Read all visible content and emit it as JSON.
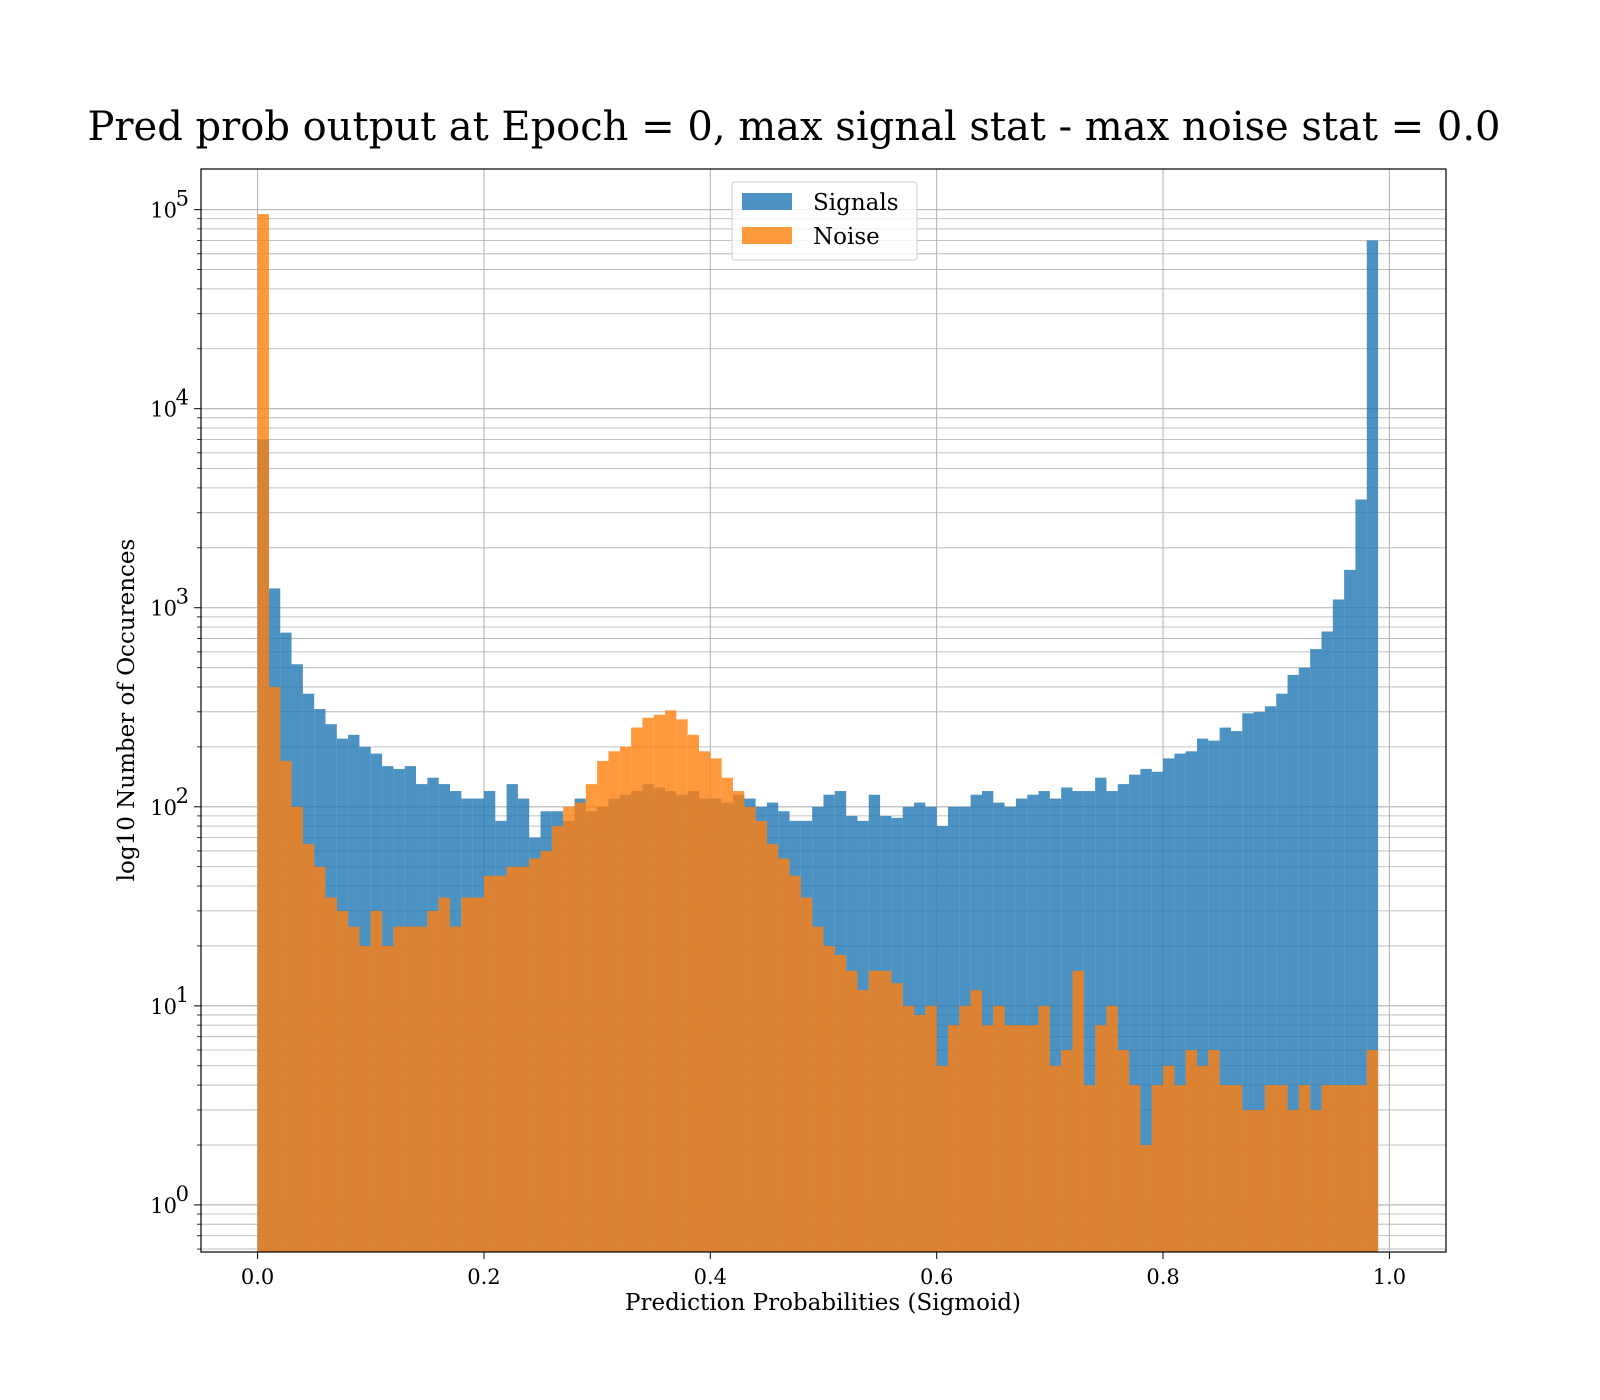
{
  "chart_data": {
    "type": "bar",
    "subtype": "histogram",
    "title": "Pred prob output at Epoch = 0, max signal stat - max noise stat = 0.0",
    "xlabel": "Prediction Probabilities (Sigmoid)",
    "ylabel": "log10 Number of Occurences",
    "xlim": [
      -0.05,
      1.05
    ],
    "ylim": [
      0.58,
      160000
    ],
    "yscale": "log",
    "grid": true,
    "legend_position": "top-center",
    "x_ticks": [
      "0.0",
      "0.2",
      "0.4",
      "0.6",
      "0.8",
      "1.0"
    ],
    "y_ticks": [
      {
        "base": "10",
        "exp": "0"
      },
      {
        "base": "10",
        "exp": "1"
      },
      {
        "base": "10",
        "exp": "2"
      },
      {
        "base": "10",
        "exp": "3"
      },
      {
        "base": "10",
        "exp": "4"
      },
      {
        "base": "10",
        "exp": "5"
      }
    ],
    "bins": {
      "start": 0.0,
      "end": 1.0,
      "count": 100
    },
    "series": [
      {
        "name": "Signals",
        "color": "#1f77b4",
        "opacity": 0.8,
        "values": [
          7000,
          1250,
          750,
          520,
          370,
          310,
          260,
          220,
          230,
          200,
          185,
          160,
          155,
          160,
          130,
          140,
          130,
          120,
          110,
          110,
          120,
          85,
          130,
          110,
          70,
          95,
          95,
          85,
          110,
          95,
          100,
          110,
          115,
          120,
          130,
          125,
          120,
          115,
          120,
          110,
          110,
          105,
          115,
          110,
          100,
          105,
          95,
          85,
          85,
          100,
          115,
          120,
          90,
          85,
          115,
          90,
          88,
          100,
          105,
          100,
          80,
          100,
          100,
          115,
          120,
          105,
          100,
          110,
          115,
          120,
          110,
          125,
          120,
          120,
          140,
          120,
          130,
          145,
          155,
          150,
          175,
          185,
          190,
          220,
          215,
          250,
          240,
          295,
          300,
          320,
          370,
          460,
          500,
          620,
          760,
          1100,
          1550,
          3500,
          70000,
          0
        ]
      },
      {
        "name": "Noise",
        "color": "#ff7f0e",
        "opacity": 0.8,
        "values": [
          95000,
          400,
          170,
          100,
          65,
          50,
          35,
          30,
          25,
          20,
          30,
          20,
          25,
          25,
          25,
          30,
          35,
          25,
          35,
          35,
          45,
          45,
          50,
          50,
          55,
          60,
          80,
          100,
          105,
          130,
          170,
          190,
          200,
          250,
          280,
          290,
          305,
          275,
          230,
          190,
          175,
          140,
          120,
          100,
          85,
          65,
          55,
          45,
          35,
          25,
          20,
          18,
          15,
          12,
          15,
          15,
          13,
          10,
          9,
          10,
          5,
          8,
          10,
          12,
          8,
          10,
          8,
          8,
          8,
          10,
          5,
          6,
          15,
          4,
          8,
          10,
          6,
          4,
          2,
          4,
          5,
          4,
          6,
          5,
          6,
          4,
          4,
          3,
          3,
          4,
          4,
          3,
          4,
          3,
          4,
          4,
          4,
          4,
          6,
          0
        ]
      }
    ]
  }
}
